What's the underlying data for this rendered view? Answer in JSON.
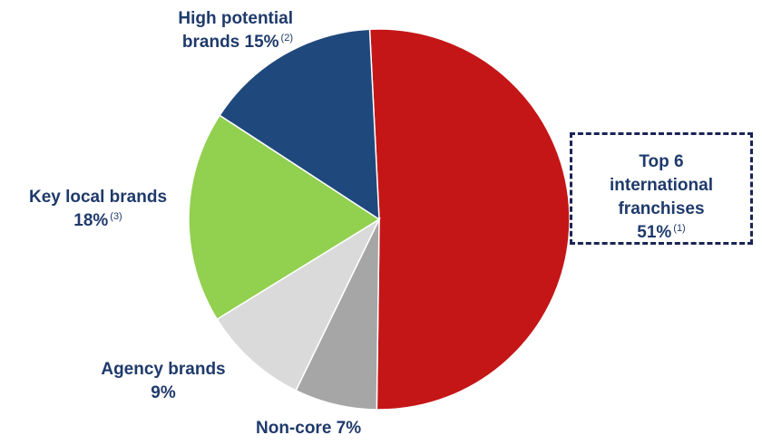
{
  "chart_data": {
    "type": "pie",
    "categories": [
      "Top 6 international franchises",
      "Non-core",
      "Agency brands",
      "Key local brands",
      "High potential brands"
    ],
    "values": [
      51,
      7,
      9,
      18,
      15
    ],
    "colors": [
      "#c41617",
      "#a6a6a6",
      "#dadada",
      "#92d050",
      "#1f497d"
    ],
    "labels": {
      "top6": {
        "line1": "Top 6",
        "line2": "international",
        "line3": "franchises",
        "pct": "51%",
        "note": "(1)"
      },
      "noncore": {
        "line1": "Non-core 7%"
      },
      "agency": {
        "line1": "Agency brands",
        "line2": "9%"
      },
      "keylocal": {
        "line1": "Key local brands",
        "line2": "18%",
        "note": "(3)"
      },
      "high": {
        "line1": "High potential",
        "line2": "brands 15%",
        "note": "(2)"
      }
    }
  }
}
